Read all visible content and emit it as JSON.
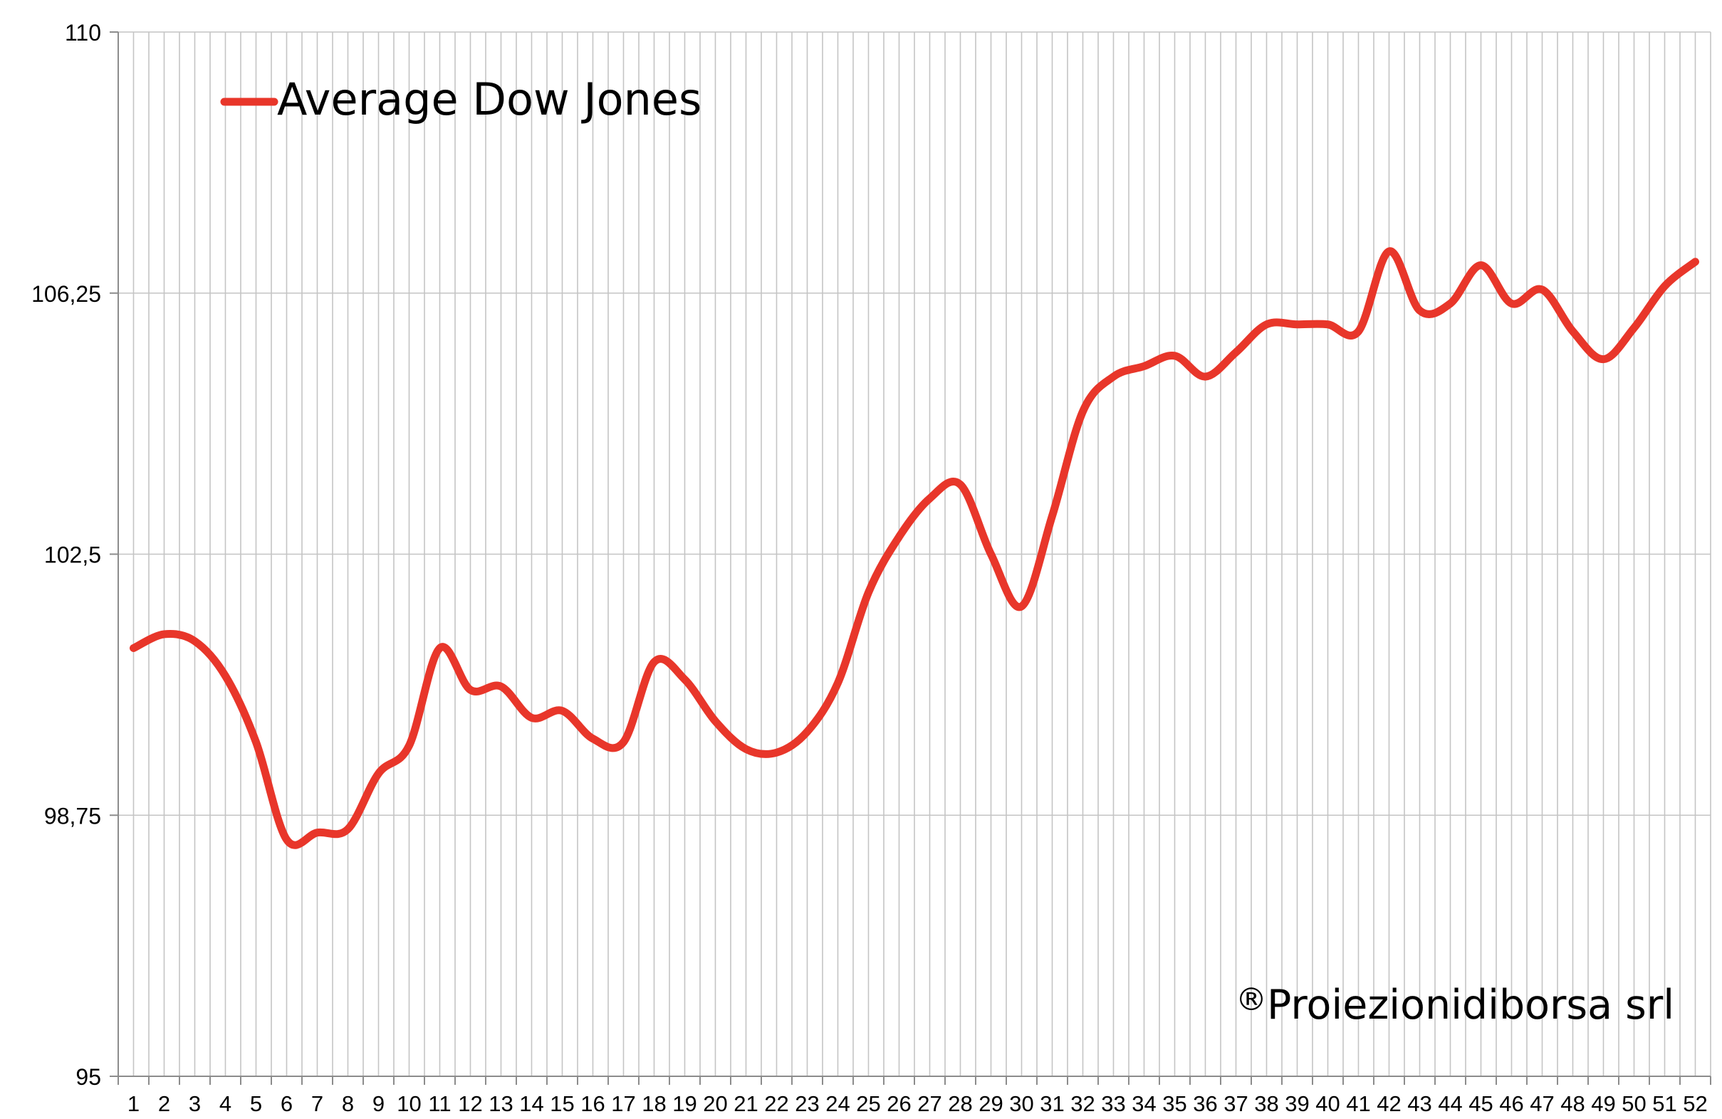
{
  "chart_data": {
    "type": "line",
    "x": [
      1,
      2,
      3,
      4,
      5,
      6,
      7,
      8,
      9,
      10,
      11,
      12,
      13,
      14,
      15,
      16,
      17,
      18,
      19,
      20,
      21,
      22,
      23,
      24,
      25,
      26,
      27,
      28,
      29,
      30,
      31,
      32,
      33,
      34,
      35,
      36,
      37,
      38,
      39,
      40,
      41,
      42,
      43,
      44,
      45,
      46,
      47,
      48,
      49,
      50,
      51,
      52
    ],
    "x_tick_labels": [
      "1",
      "2",
      "3",
      "4",
      "5",
      "6",
      "7",
      "8",
      "9",
      "10",
      "11",
      "12",
      "13",
      "14",
      "15",
      "16",
      "17",
      "18",
      "19",
      "20",
      "21",
      "22",
      "23",
      "24",
      "25",
      "26",
      "27",
      "28",
      "29",
      "30",
      "31",
      "32",
      "33",
      "34",
      "35",
      "36",
      "37",
      "38",
      "39",
      "40",
      "41",
      "42",
      "43",
      "44",
      "45",
      "46",
      "47",
      "48",
      "49",
      "50",
      "51",
      "52"
    ],
    "series": [
      {
        "name": "Average Dow Jones",
        "color": "#e8362a",
        "values": [
          101.15,
          101.35,
          101.25,
          100.75,
          99.8,
          98.4,
          98.5,
          98.55,
          99.35,
          99.75,
          101.15,
          100.55,
          100.6,
          100.15,
          100.25,
          99.85,
          99.8,
          100.95,
          100.7,
          100.1,
          99.7,
          99.65,
          99.95,
          100.65,
          101.95,
          102.75,
          103.3,
          103.5,
          102.5,
          101.75,
          103.05,
          104.55,
          105.05,
          105.2,
          105.35,
          105.05,
          105.4,
          105.8,
          105.8,
          105.8,
          105.7,
          106.85,
          106,
          106.1,
          106.65,
          106.1,
          106.3,
          105.7,
          105.3,
          105.75,
          106.35,
          106.7
        ]
      }
    ],
    "ylim": [
      95,
      110
    ],
    "y_ticks": [
      95,
      98.75,
      102.5,
      106.25,
      110
    ],
    "y_tick_labels": [
      "95",
      "98,75",
      "102,5",
      "106,25",
      "110"
    ],
    "grid": true,
    "legend_position": "top-left",
    "title": "",
    "xlabel": "",
    "ylabel": ""
  },
  "watermark": {
    "symbol": "®",
    "text": "Proiezionidiborsa srl"
  }
}
